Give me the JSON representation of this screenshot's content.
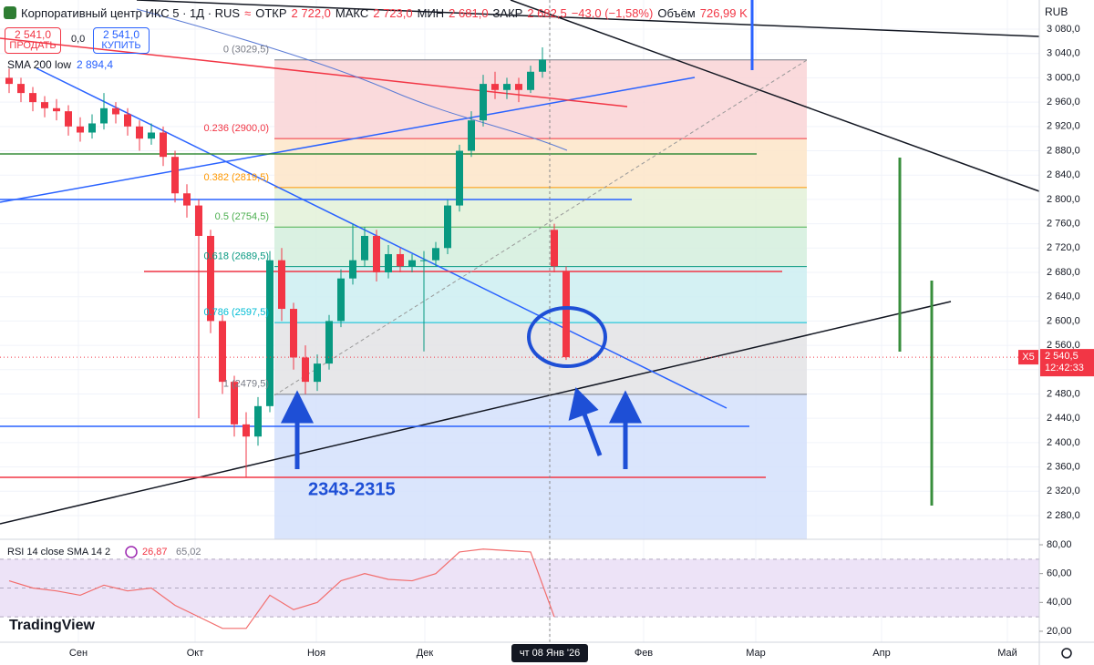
{
  "header": {
    "title": "Корпоративный центр ИКС 5 · 1Д · RUS",
    "open_label": "ОТКР",
    "open": "2 722,0",
    "high_label": "МАКС",
    "high": "2 723,0",
    "low_label": "МИН",
    "low": "2 681,0",
    "close_label": "ЗАКР",
    "close": "2 682,5",
    "change": "−43,0 (−1,58%)",
    "volume_label": "Объём",
    "volume": "726,99 K",
    "currency": "RUB"
  },
  "trade": {
    "sell_price": "2 541,0",
    "sell_label": "ПРОДАТЬ",
    "spread": "0,0",
    "buy_price": "2 541,0",
    "buy_label": "КУПИТЬ"
  },
  "indicator": {
    "name": "SMA 200 low",
    "value": "2 894,4"
  },
  "annotation": "2343-2315",
  "price_tag": {
    "symbol": "X5",
    "price": "2 540,5",
    "timer": "12:42:33"
  },
  "logo": "TradingView",
  "chart_data": {
    "type": "candlestick",
    "up_color": "#089981",
    "down_color": "#f23645",
    "grid": true,
    "open": [
      3000,
      2990,
      2975,
      2960,
      2950,
      2945,
      2920,
      2910,
      2925,
      2950,
      2940,
      2920,
      2900,
      2910,
      2870,
      2810,
      2790,
      2740,
      2600,
      2500,
      2430,
      2410,
      2460,
      2700,
      2620,
      2540,
      2500,
      2530,
      2600,
      2670,
      2700,
      2740,
      2680,
      2710,
      2690,
      2700,
      2700,
      2720,
      2790,
      2880,
      2930,
      2990,
      2980,
      2990,
      2980,
      3010,
      2750,
      2682.5
    ],
    "high": [
      3015,
      3000,
      2985,
      2970,
      2965,
      2955,
      2935,
      2940,
      2975,
      2960,
      2950,
      2930,
      2925,
      2920,
      2880,
      2825,
      2800,
      2750,
      2610,
      2510,
      2450,
      2475,
      2715,
      2720,
      2630,
      2560,
      2545,
      2610,
      2685,
      2760,
      2755,
      2750,
      2725,
      2720,
      2710,
      2715,
      2730,
      2800,
      2890,
      2945,
      3005,
      3010,
      3000,
      3000,
      3020,
      3050,
      2760,
      2690
    ],
    "low": [
      2975,
      2960,
      2945,
      2935,
      2930,
      2905,
      2895,
      2900,
      2915,
      2925,
      2905,
      2880,
      2890,
      2855,
      2795,
      2770,
      2440,
      2580,
      2480,
      2410,
      2343,
      2395,
      2450,
      2600,
      2520,
      2480,
      2485,
      2520,
      2590,
      2660,
      2690,
      2665,
      2670,
      2680,
      2680,
      2550,
      2690,
      2710,
      2780,
      2870,
      2920,
      2965,
      2965,
      2960,
      2975,
      3000,
      2680,
      2536
    ],
    "close": [
      2990,
      2975,
      2960,
      2950,
      2945,
      2920,
      2910,
      2925,
      2950,
      2940,
      2920,
      2900,
      2910,
      2870,
      2810,
      2790,
      2740,
      2600,
      2500,
      2430,
      2410,
      2460,
      2700,
      2620,
      2540,
      2500,
      2530,
      2600,
      2670,
      2700,
      2740,
      2680,
      2710,
      2690,
      2700,
      2700,
      2720,
      2790,
      2880,
      2930,
      2990,
      2980,
      2990,
      2980,
      3010,
      3030,
      2690,
      2540.5
    ],
    "ylim": [
      2241,
      3128
    ],
    "yticks": [
      {
        "value": 2280,
        "label": "2 280,0"
      },
      {
        "value": 2320,
        "label": "2 320,0"
      },
      {
        "value": 2360,
        "label": "2 360,0"
      },
      {
        "value": 2400,
        "label": "2 400,0"
      },
      {
        "value": 2440,
        "label": "2 440,0"
      },
      {
        "value": 2480,
        "label": "2 480,0"
      },
      {
        "value": 2520,
        "label": "2 520,0"
      },
      {
        "value": 2560,
        "label": "2 560,0"
      },
      {
        "value": 2600,
        "label": "2 600,0"
      },
      {
        "value": 2640,
        "label": "2 640,0"
      },
      {
        "value": 2680,
        "label": "2 680,0"
      },
      {
        "value": 2720,
        "label": "2 720,0"
      },
      {
        "value": 2760,
        "label": "2 760,0"
      },
      {
        "value": 2800,
        "label": "2 800,0"
      },
      {
        "value": 2840,
        "label": "2 840,0"
      },
      {
        "value": 2880,
        "label": "2 880,0"
      },
      {
        "value": 2920,
        "label": "2 920,0"
      },
      {
        "value": 2960,
        "label": "2 960,0"
      },
      {
        "value": 3000,
        "label": "3 000,0"
      },
      {
        "value": 3040,
        "label": "3 040,0"
      },
      {
        "value": 3080,
        "label": "3 080,0"
      }
    ],
    "fib_levels": [
      {
        "value": 3029.5,
        "label": "0 (3029,5)",
        "color": "#787b86",
        "fill": "#f9d4d6"
      },
      {
        "value": 2900,
        "label": "0.236 (2900,0)",
        "color": "#f23645",
        "fill": "#fde5c8"
      },
      {
        "value": 2819.5,
        "label": "0.382 (2819,5)",
        "color": "#ff9800",
        "fill": "#e3f1d8"
      },
      {
        "value": 2754.5,
        "label": "0.5 (2754,5)",
        "color": "#4caf50",
        "fill": "#d3eedd"
      },
      {
        "value": 2689.5,
        "label": "0.618 (2689,5)",
        "color": "#089981",
        "fill": "#cdeff1"
      },
      {
        "value": 2597.5,
        "label": "0.786 (2597,5)",
        "color": "#00bcd4",
        "fill": "#e3e3e5"
      },
      {
        "value": 2479.5,
        "label": "1 (2479,5)",
        "color": "#787b86",
        "fill": "#d4e0fb"
      }
    ],
    "x_labels": [
      "Сен",
      "Окт",
      "Ноя",
      "Дек",
      "чт 08 Янв '26",
      "Фев",
      "Мар",
      "Апр",
      "Май"
    ],
    "rsi": {
      "title": "RSI 14 close SMA 14 2",
      "value": "26,87",
      "sma_value": "65,02",
      "color": "#f26d6d",
      "values": [
        55,
        50,
        48,
        45,
        52,
        48,
        50,
        38,
        30,
        22,
        22,
        45,
        35,
        40,
        55,
        60,
        56,
        55,
        60,
        75,
        77,
        76,
        75,
        30
      ],
      "ylim": [
        12.4,
        83.8
      ],
      "yticks": [
        {
          "value": 20,
          "label": "20,00"
        },
        {
          "value": 40,
          "label": "40,00"
        },
        {
          "value": 60,
          "label": "60,00"
        },
        {
          "value": 80,
          "label": "80,00"
        }
      ]
    }
  }
}
